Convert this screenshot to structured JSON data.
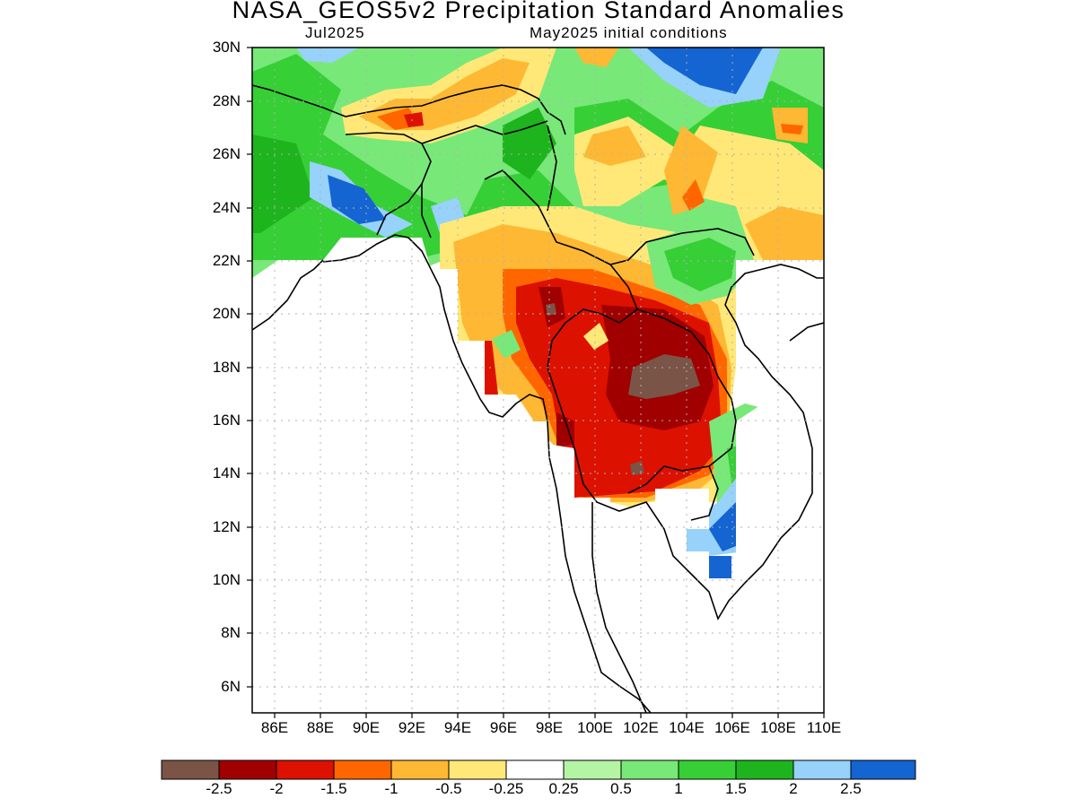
{
  "title": "NASA_GEOS5v2 Precipitation Standard Anomalies",
  "subtitle_left": "Jul2025",
  "subtitle_right": "May2025 initial conditions",
  "map": {
    "lon_range": [
      85,
      110
    ],
    "lat_range": [
      5,
      30
    ],
    "lat_ticks": [
      "30N",
      "28N",
      "26N",
      "24N",
      "22N",
      "20N",
      "18N",
      "16N",
      "14N",
      "12N",
      "10N",
      "8N",
      "6N"
    ],
    "lon_ticks": [
      "86E",
      "88E",
      "90E",
      "92E",
      "94E",
      "96E",
      "98E",
      "100E",
      "102E",
      "104E",
      "106E",
      "108E",
      "110E"
    ]
  },
  "colorbar": {
    "colors": [
      "#7a5447",
      "#a00000",
      "#dd1100",
      "#ff6600",
      "#ffb833",
      "#ffe878",
      "#ffffff",
      "#b4f5a4",
      "#78e878",
      "#36cf36",
      "#1eb41e",
      "#96d2fa",
      "#1464d2"
    ],
    "labels": [
      "-2.5",
      "-2",
      "-1.5",
      "-1",
      "-0.5",
      "-0.25",
      "0.25",
      "0.5",
      "1",
      "1.5",
      "2",
      "2.5"
    ]
  }
}
